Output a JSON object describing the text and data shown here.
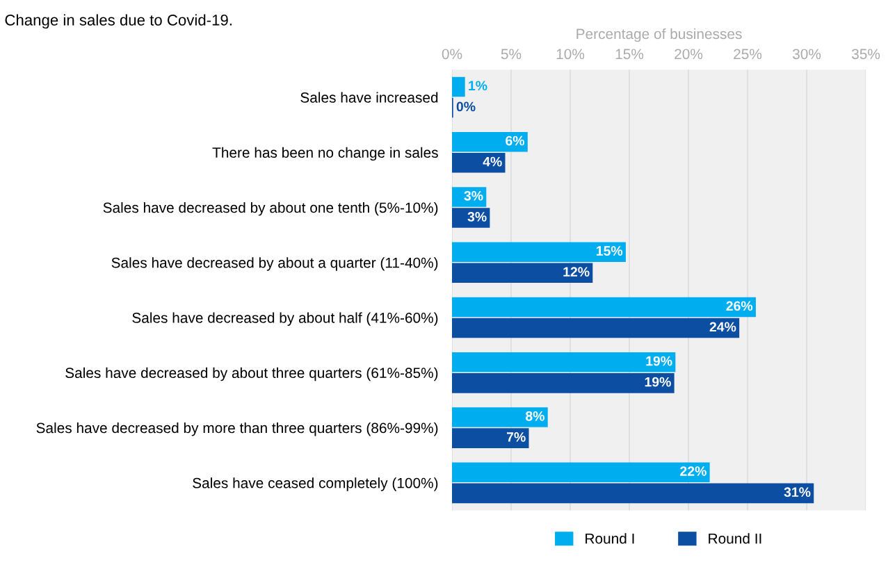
{
  "chart_data": {
    "type": "bar",
    "orientation": "horizontal",
    "title": "Change in sales due to Covid-19.",
    "xlabel": "Percentage of businesses",
    "categories": [
      "Sales have increased",
      "There has been no change in sales",
      "Sales have decreased by about one tenth (5%-10%)",
      "Sales have decreased by about a quarter (11-40%)",
      "Sales have decreased by about half (41%-60%)",
      "Sales have decreased by about three quarters (61%-85%)",
      "Sales have decreased by more than three quarters (86%-99%)",
      "Sales have ceased completely (100%)"
    ],
    "series": [
      {
        "name": "Round I",
        "color": "#00aeef",
        "values": [
          1.1,
          6.4,
          2.9,
          14.7,
          25.7,
          18.9,
          8.1,
          21.8
        ],
        "value_labels": [
          "1%",
          "6%",
          "3%",
          "15%",
          "26%",
          "19%",
          "8%",
          "22%"
        ]
      },
      {
        "name": "Round II",
        "color": "#0b4ea2",
        "values": [
          0.1,
          4.5,
          3.2,
          11.9,
          24.3,
          18.8,
          6.5,
          30.6
        ],
        "value_labels": [
          "0%",
          "4%",
          "3%",
          "12%",
          "24%",
          "19%",
          "7%",
          "31%"
        ]
      }
    ],
    "xlim": [
      0,
      35
    ],
    "xticks": [
      {
        "value": 0,
        "label": "0%"
      },
      {
        "value": 5,
        "label": "5%"
      },
      {
        "value": 10,
        "label": "10%"
      },
      {
        "value": 15,
        "label": "15%"
      },
      {
        "value": 20,
        "label": "20%"
      },
      {
        "value": 25,
        "label": "25%"
      },
      {
        "value": 30,
        "label": "30%"
      },
      {
        "value": 35,
        "label": "35%"
      }
    ],
    "grid": "x",
    "legend": "bottom"
  }
}
